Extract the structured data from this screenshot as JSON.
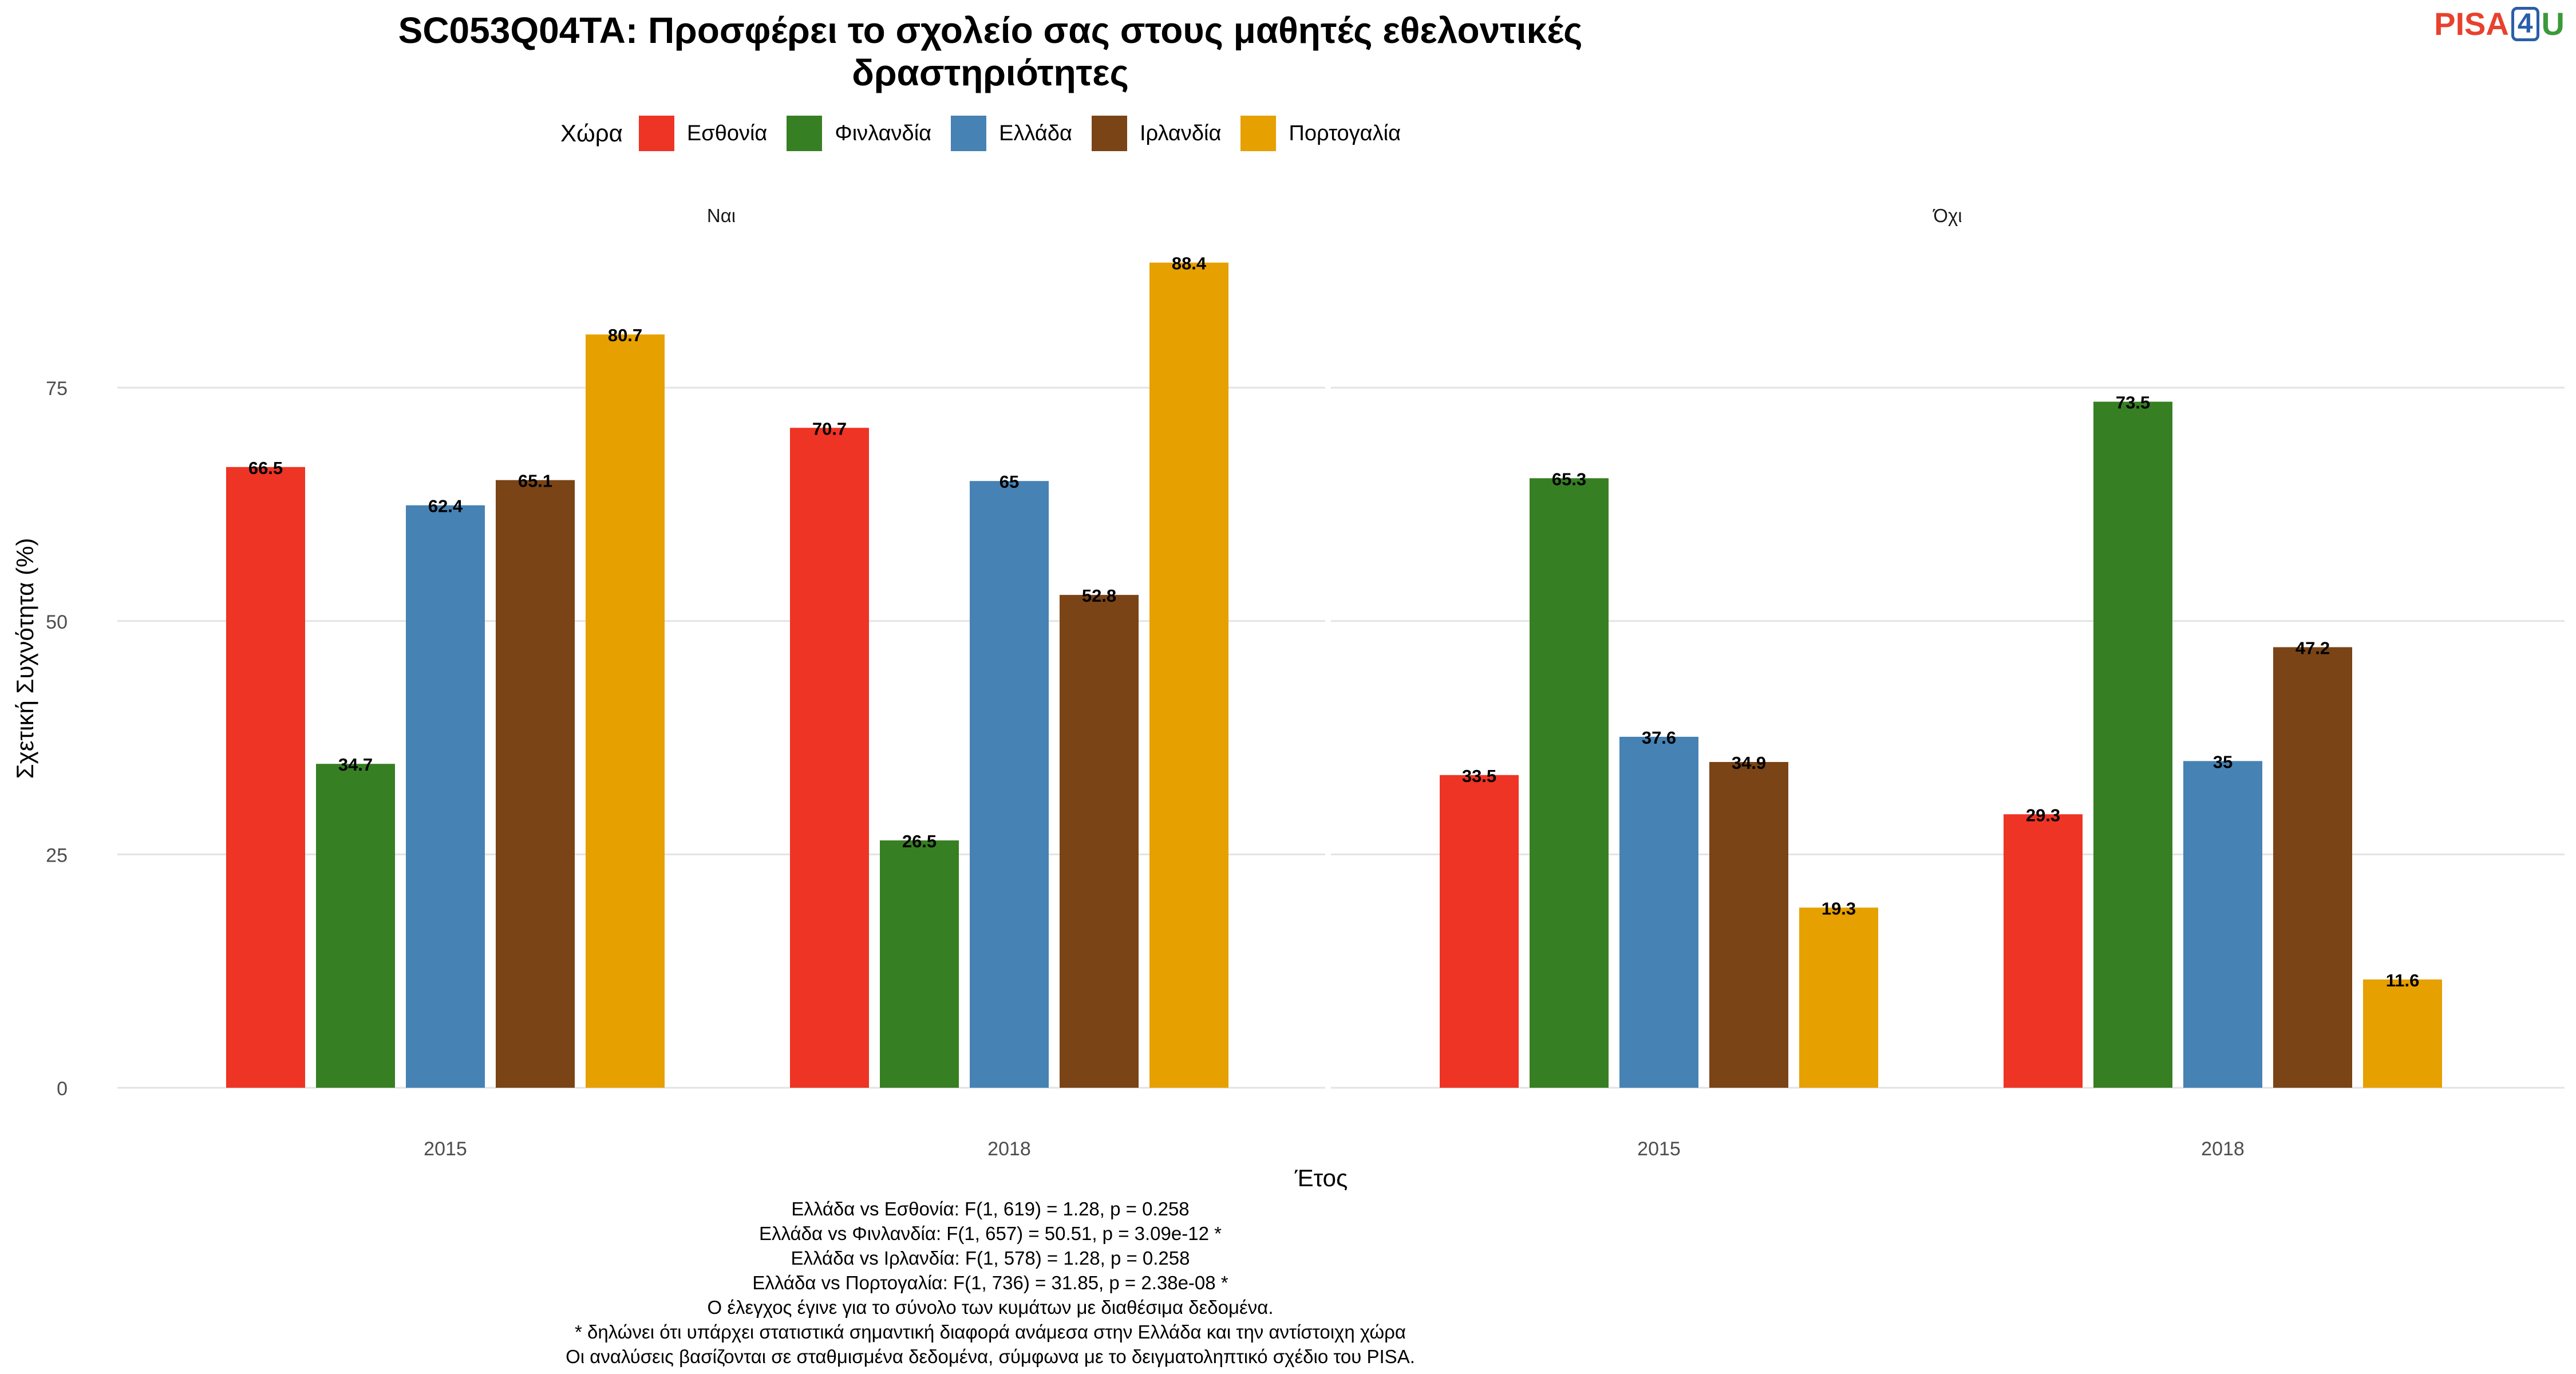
{
  "chart_data": {
    "type": "bar",
    "title_lines": [
      "SC053Q04TA: Προσφέρει το σχολείο σας στους μαθητές εθελοντικές",
      "δραστηριότητες"
    ],
    "xlabel": "Έτος",
    "ylabel": "Σχετική Συχνότητα (%)",
    "ylim": [
      0,
      92
    ],
    "yticks": [
      0,
      25,
      50,
      75
    ],
    "grid": true,
    "legend_placement": "top",
    "legend_title": "Χώρα",
    "categories": [
      "2015",
      "2018"
    ],
    "series": [
      {
        "name": "Εσθονία",
        "color": "#ee3424"
      },
      {
        "name": "Φινλανδία",
        "color": "#377f23"
      },
      {
        "name": "Ελλάδα",
        "color": "#4682b4"
      },
      {
        "name": "Ιρλανδία",
        "color": "#7a4416"
      },
      {
        "name": "Πορτογαλία",
        "color": "#e6a000"
      }
    ],
    "facets": [
      {
        "label": "Ναι",
        "values": {
          "2015": [
            66.5,
            34.7,
            62.4,
            65.1,
            80.7
          ],
          "2018": [
            70.7,
            26.5,
            65,
            52.8,
            88.4
          ]
        }
      },
      {
        "label": "Όχι",
        "values": {
          "2015": [
            33.5,
            65.3,
            37.6,
            34.9,
            19.3
          ],
          "2018": [
            29.3,
            73.5,
            35,
            47.2,
            11.6
          ]
        }
      }
    ]
  },
  "logo": {
    "pisa": "PISA",
    "num": "4",
    "u": "U"
  },
  "footnotes": [
    "Ελλάδα vs Εσθονία: F(1, 619) = 1.28, p = 0.258",
    "Ελλάδα vs Φινλανδία: F(1, 657) = 50.51, p = 3.09e-12 *",
    "Ελλάδα vs Ιρλανδία: F(1, 578) = 1.28, p = 0.258",
    "Ελλάδα vs Πορτογαλία: F(1, 736) = 31.85, p = 2.38e-08 *",
    "Ο έλεγχος έγινε για το σύνολο των κυμάτων με διαθέσιμα δεδομένα.",
    "* δηλώνει ότι υπάρχει στατιστικά σημαντική διαφορά ανάμεσα στην Ελλάδα και την αντίστοιχη χώρα",
    "Οι αναλύσεις βασίζονται σε σταθμισμένα δεδομένα, σύμφωνα με το δειγματοληπτικό σχέδιο του PISA."
  ]
}
